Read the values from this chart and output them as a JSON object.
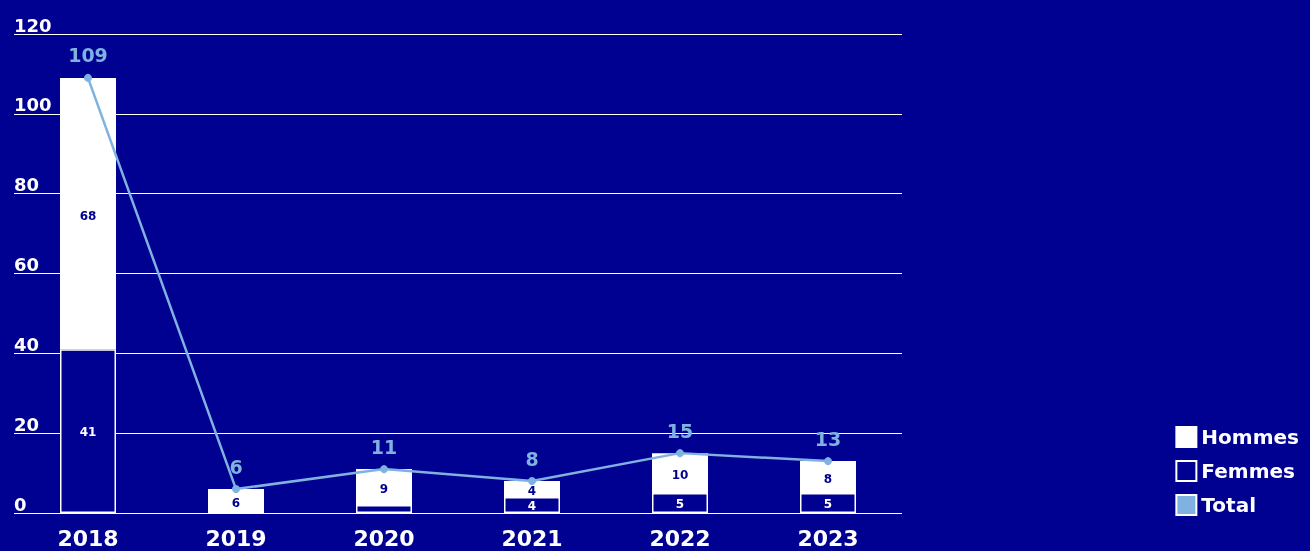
{
  "chart_data": {
    "type": "bar",
    "stacked": true,
    "categories": [
      "2018",
      "2019",
      "2020",
      "2021",
      "2022",
      "2023"
    ],
    "series": [
      {
        "name": "Femmes",
        "color": "#000091",
        "values": [
          41,
          null,
          2,
          4,
          5,
          5
        ],
        "value_labels": [
          "41",
          null,
          null,
          "4",
          "5",
          "5"
        ]
      },
      {
        "name": "Hommes",
        "color": "#ffffff",
        "values": [
          68,
          6,
          9,
          4,
          10,
          8
        ],
        "value_labels": [
          "68",
          "6",
          "9",
          "4",
          "10",
          "8"
        ]
      },
      {
        "name": "Total",
        "type": "line",
        "color": "#7fb2e0",
        "values": [
          109,
          6,
          11,
          8,
          15,
          13
        ],
        "value_labels": [
          "109",
          "6",
          "11",
          "8",
          "15",
          "13"
        ]
      }
    ],
    "ylim": [
      0,
      120
    ],
    "yticks": [
      0,
      20,
      40,
      60,
      80,
      100,
      120
    ],
    "grid": "y",
    "legend": "bottom right",
    "marker": "circle"
  }
}
